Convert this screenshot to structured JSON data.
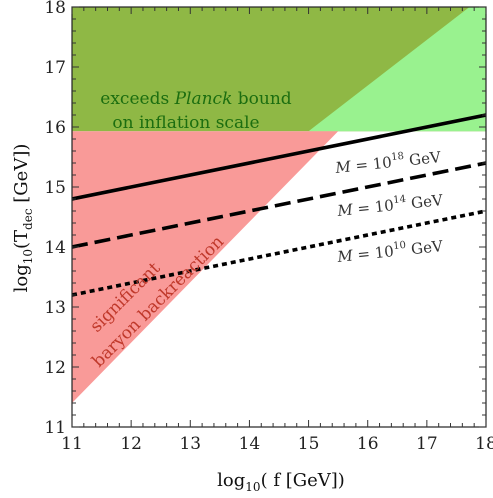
{
  "chart_data": {
    "type": "line",
    "xlabel_prefix": "log",
    "xlabel_sub": "10",
    "xlabel_main": "( f [GeV])",
    "ylabel_prefix": "log",
    "ylabel_sub": "10",
    "ylabel_open": "(T",
    "ylabel_tsub": "dec",
    "ylabel_close": " [GeV])",
    "xlim": [
      11,
      18
    ],
    "ylim": [
      11,
      18
    ],
    "xticks": [
      11,
      12,
      13,
      14,
      15,
      16,
      17,
      18
    ],
    "yticks": [
      11,
      12,
      13,
      14,
      15,
      16,
      17,
      18
    ],
    "regions": {
      "planck": {
        "line1": "exceeds ",
        "line1_italic": "Planck",
        "line1_end": " bound",
        "line2": "on inflation scale",
        "polygon": [
          [
            11,
            15.93
          ],
          [
            18,
            15.93
          ],
          [
            18,
            18
          ],
          [
            11,
            18
          ]
        ],
        "color": "#8fb845"
      },
      "green": {
        "polygon": [
          [
            15.0,
            15.93
          ],
          [
            17.72,
            18
          ],
          [
            18,
            18
          ],
          [
            18,
            15.93
          ]
        ],
        "color": "#99f28f"
      },
      "baryon": {
        "line1": "significant",
        "line2": "baryon backreaction",
        "polygon": [
          [
            11,
            11.4
          ],
          [
            15.5,
            15.93
          ],
          [
            11,
            15.93
          ]
        ],
        "color": "#f99a98"
      }
    },
    "series": [
      {
        "label_prefix": "M = 10",
        "label_exp": "18",
        "label_unit": " GeV",
        "style": "solid",
        "x": [
          11,
          18
        ],
        "y": [
          14.8,
          16.2
        ]
      },
      {
        "label_prefix": "M = 10",
        "label_exp": "14",
        "label_unit": " GeV",
        "style": "dashed",
        "x": [
          11,
          18
        ],
        "y": [
          14.0,
          15.4
        ]
      },
      {
        "label_prefix": "M = 10",
        "label_exp": "10",
        "label_unit": " GeV",
        "style": "dotted",
        "x": [
          11,
          18
        ],
        "y": [
          13.2,
          14.6
        ]
      }
    ]
  }
}
